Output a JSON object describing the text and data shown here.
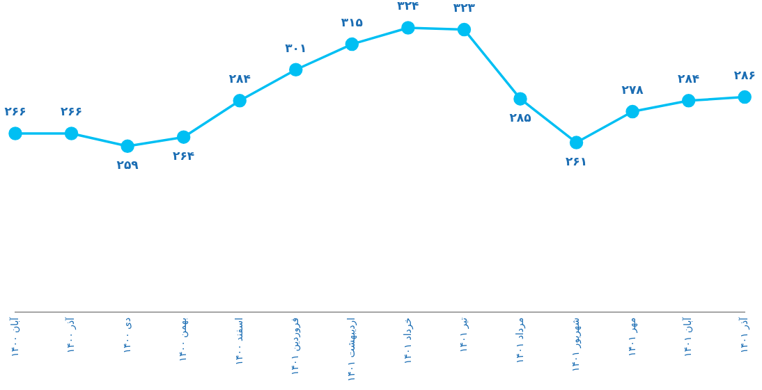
{
  "chart_data": {
    "type": "line",
    "categories": [
      "آبان ۱۴۰۰",
      "آذر ۱۴۰۰",
      "دی ۱۴۰۰",
      "بهمن ۱۴۰۰",
      "اسفند ۱۴۰۰",
      "فروردین ۱۴۰۱",
      "اردیبهشت ۱۴۰۱",
      "خرداد ۱۴۰۱",
      "تیر ۱۴۰۱",
      "مرداد ۱۴۰۱",
      "شهریور ۱۴۰۱",
      "مهر ۱۴۰۱",
      "آبان ۱۴۰۱",
      "آذر ۱۴۰۱"
    ],
    "series": [
      {
        "color": "#00bff3",
        "values": [
          266,
          266,
          259,
          264,
          284,
          301,
          315,
          324,
          323,
          285,
          261,
          278,
          284,
          286
        ],
        "value_labels": [
          "۲۶۶",
          "۲۶۶",
          "۲۵۹",
          "۲۶۴",
          "۲۸۴",
          "۳۰۱",
          "۳۱۵",
          "۳۲۴",
          "۳۲۳",
          "۲۸۵",
          "۲۶۱",
          "۲۷۸",
          "۲۸۴",
          "۲۸۶"
        ]
      }
    ],
    "tick_labels": "x",
    "grid": false,
    "legend": false,
    "marker": "circle",
    "line_style": "solid"
  }
}
